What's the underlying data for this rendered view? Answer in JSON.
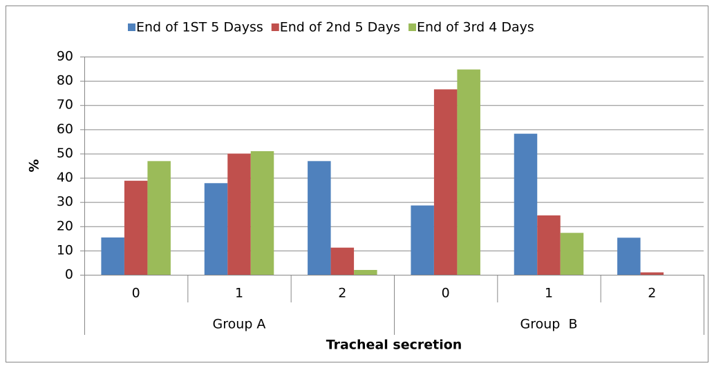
{
  "chart_data": {
    "type": "bar",
    "xlabel": "Tracheal secretion",
    "ylabel": "%",
    "categories": [
      "0",
      "1",
      "2",
      "0",
      "1",
      "2"
    ],
    "groups": [
      "Group A",
      "Group  B"
    ],
    "series": [
      {
        "name": "End of 1ST 5 Dayss",
        "color": "#4f81bd",
        "values": [
          15.4,
          37.8,
          46.9,
          28.6,
          58.2,
          15.3
        ]
      },
      {
        "name": "End of 2nd 5 Days",
        "color": "#c0504d",
        "values": [
          38.8,
          50,
          11.2,
          76.5,
          24.5,
          1
        ]
      },
      {
        "name": "End of 3rd 4 Days",
        "color": "#9bbb59",
        "values": [
          46.9,
          51,
          2,
          84.7,
          17.3,
          0
        ]
      }
    ],
    "ylim": [
      0,
      90
    ],
    "yticks": [
      0,
      10,
      20,
      30,
      40,
      50,
      60,
      70,
      80,
      90
    ],
    "grid": true,
    "legend": "top"
  }
}
